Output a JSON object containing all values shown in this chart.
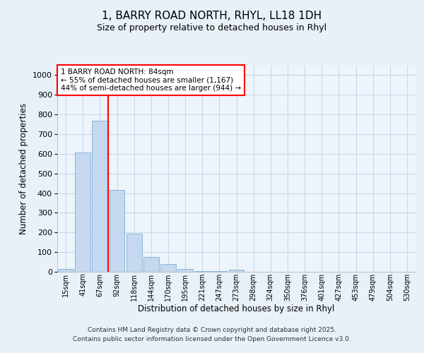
{
  "title_line1": "1, BARRY ROAD NORTH, RHYL, LL18 1DH",
  "title_line2": "Size of property relative to detached houses in Rhyl",
  "xlabel": "Distribution of detached houses by size in Rhyl",
  "ylabel": "Number of detached properties",
  "categories": [
    "15sqm",
    "41sqm",
    "67sqm",
    "92sqm",
    "118sqm",
    "144sqm",
    "170sqm",
    "195sqm",
    "221sqm",
    "247sqm",
    "273sqm",
    "298sqm",
    "324sqm",
    "350sqm",
    "376sqm",
    "401sqm",
    "427sqm",
    "453sqm",
    "479sqm",
    "504sqm",
    "530sqm"
  ],
  "values": [
    15,
    605,
    767,
    415,
    193,
    75,
    38,
    15,
    5,
    2,
    10,
    0,
    0,
    0,
    0,
    0,
    0,
    0,
    0,
    0,
    0
  ],
  "bar_color": "#c5d8f0",
  "bar_edge_color": "#7bafd4",
  "vline_x": 2.5,
  "vline_color": "red",
  "annotation_text": "1 BARRY ROAD NORTH: 84sqm\n← 55% of detached houses are smaller (1,167)\n44% of semi-detached houses are larger (944) →",
  "annotation_box_color": "red",
  "annotation_fill_color": "white",
  "ylim": [
    0,
    1050
  ],
  "yticks": [
    0,
    100,
    200,
    300,
    400,
    500,
    600,
    700,
    800,
    900,
    1000
  ],
  "grid_color": "#c8d8e8",
  "background_color": "#e8f0f8",
  "plot_bg_color": "#eef4fb",
  "footer_line1": "Contains HM Land Registry data © Crown copyright and database right 2025.",
  "footer_line2": "Contains public sector information licensed under the Open Government Licence v3.0."
}
